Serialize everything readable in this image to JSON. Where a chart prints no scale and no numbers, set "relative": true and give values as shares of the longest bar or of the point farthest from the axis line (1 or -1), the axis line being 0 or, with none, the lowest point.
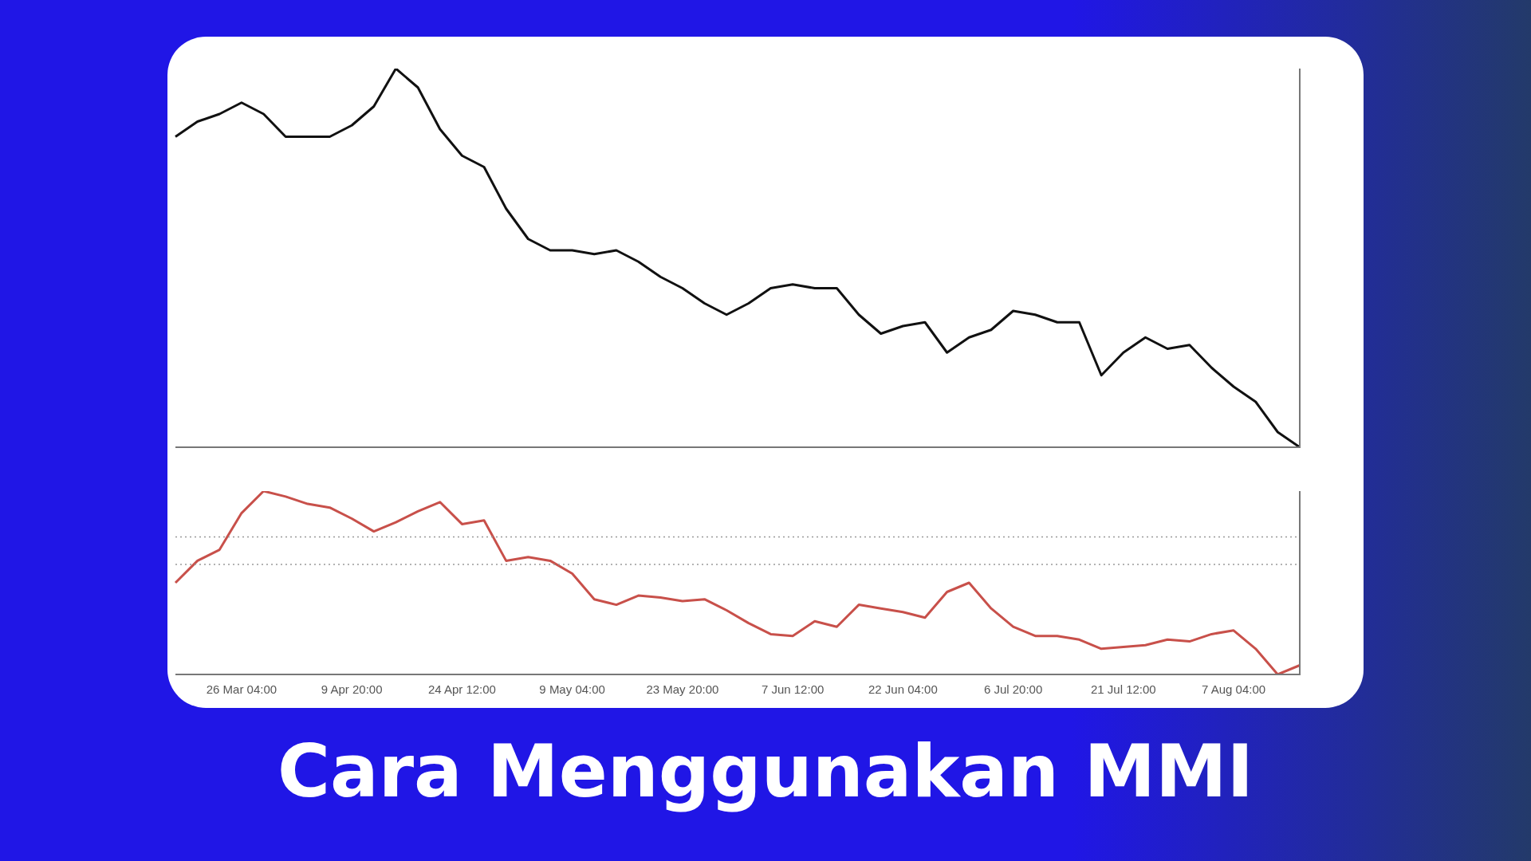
{
  "chart_data": [
    {
      "type": "line",
      "title": "Cara Menggunakan MMI",
      "relative": true,
      "legend": false,
      "grid": false,
      "tick_labels": false,
      "marker": "none",
      "line_style": "solid",
      "categories": [
        null,
        null,
        null,
        null,
        null,
        null,
        null,
        null,
        null,
        null,
        null,
        null,
        null,
        null,
        null,
        null,
        null,
        null,
        null,
        null,
        null,
        null,
        null,
        null,
        null,
        null,
        null,
        null,
        null,
        null,
        null,
        null,
        null,
        null,
        null,
        null,
        null,
        null,
        null,
        null,
        null,
        null,
        null,
        null,
        null,
        null,
        null,
        null,
        null,
        null,
        null,
        null
      ],
      "series": [
        {
          "color": "#111111",
          "values": [
            0.82,
            0.86,
            0.88,
            0.91,
            0.88,
            0.82,
            0.82,
            0.82,
            0.85,
            0.9,
            1,
            0.95,
            0.84,
            0.77,
            0.74,
            0.63,
            0.55,
            0.52,
            0.52,
            0.51,
            0.52,
            0.49,
            0.45,
            0.42,
            0.38,
            0.35,
            0.38,
            0.42,
            0.43,
            0.42,
            0.42,
            0.35,
            0.3,
            0.32,
            0.33,
            0.25,
            0.29,
            0.31,
            0.36,
            0.35,
            0.33,
            0.33,
            0.19,
            0.25,
            0.29,
            0.26,
            0.27,
            0.21,
            0.16,
            0.12,
            0.04,
            0
          ]
        }
      ]
    },
    {
      "type": "line",
      "relative": true,
      "legend": false,
      "grid": false,
      "tick_labels": "x",
      "marker": "none",
      "line_style": "solid",
      "categories": [
        null,
        null,
        null,
        "26 Mar 04:00",
        null,
        null,
        null,
        null,
        "9 Apr 20:00",
        null,
        null,
        null,
        null,
        "24 Apr 12:00",
        null,
        null,
        null,
        null,
        "9 May 04:00",
        null,
        null,
        null,
        null,
        "23 May 20:00",
        null,
        null,
        null,
        null,
        "7 Jun 12:00",
        null,
        null,
        null,
        null,
        "22 Jun 04:00",
        null,
        null,
        null,
        null,
        "6 Jul 20:00",
        null,
        null,
        null,
        null,
        "21 Jul 12:00",
        null,
        null,
        null,
        null,
        "7 Aug 04:00",
        null,
        null,
        null
      ],
      "ref_lines": [
        {
          "axis": "y",
          "value": 0.75,
          "color": "#999999",
          "line_style": "dotted"
        },
        {
          "axis": "y",
          "value": 0.6,
          "color": "#999999",
          "line_style": "dotted"
        }
      ],
      "series": [
        {
          "color": "#c8504a",
          "values": [
            0.5,
            0.62,
            0.68,
            0.88,
            1,
            0.97,
            0.93,
            0.91,
            0.85,
            0.78,
            0.83,
            0.89,
            0.94,
            0.82,
            0.84,
            0.62,
            0.64,
            0.62,
            0.55,
            0.41,
            0.38,
            0.43,
            0.42,
            0.4,
            0.41,
            0.35,
            0.28,
            0.22,
            0.21,
            0.29,
            0.26,
            0.38,
            0.36,
            0.34,
            0.31,
            0.45,
            0.5,
            0.36,
            0.26,
            0.21,
            0.21,
            0.19,
            0.14,
            0.15,
            0.16,
            0.19,
            0.18,
            0.22,
            0.24,
            0.14,
            0,
            0.05
          ]
        }
      ]
    }
  ]
}
